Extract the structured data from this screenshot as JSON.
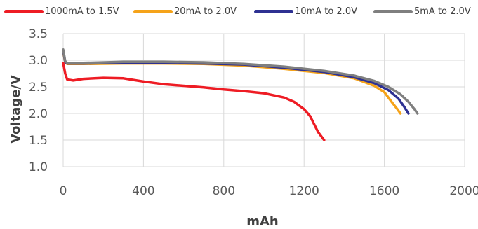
{
  "chart_data": {
    "type": "line",
    "xlabel": "mAh",
    "ylabel": "Voltage/V",
    "xlim": [
      0,
      2000
    ],
    "ylim": [
      1.0,
      3.5
    ],
    "x_ticks": [
      "0",
      "400",
      "800",
      "1200",
      "1600",
      "2000"
    ],
    "y_ticks": [
      "1.0",
      "1.5",
      "2.0",
      "2.5",
      "3.0",
      "3.5"
    ],
    "grid": "horizontal and vertical",
    "legend": "top",
    "series": [
      {
        "name": "1000mA to 1.5V",
        "color": "#ee1c24",
        "points": [
          [
            0,
            2.95
          ],
          [
            10,
            2.75
          ],
          [
            20,
            2.64
          ],
          [
            50,
            2.62
          ],
          [
            100,
            2.65
          ],
          [
            200,
            2.67
          ],
          [
            300,
            2.66
          ],
          [
            350,
            2.63
          ],
          [
            400,
            2.6
          ],
          [
            500,
            2.55
          ],
          [
            600,
            2.52
          ],
          [
            700,
            2.49
          ],
          [
            800,
            2.45
          ],
          [
            900,
            2.42
          ],
          [
            1000,
            2.38
          ],
          [
            1100,
            2.3
          ],
          [
            1150,
            2.22
          ],
          [
            1200,
            2.08
          ],
          [
            1230,
            1.95
          ],
          [
            1250,
            1.8
          ],
          [
            1270,
            1.65
          ],
          [
            1300,
            1.5
          ]
        ]
      },
      {
        "name": "20mA to 2.0V",
        "color": "#f5a31a",
        "points": [
          [
            0,
            3.15
          ],
          [
            10,
            2.97
          ],
          [
            20,
            2.93
          ],
          [
            100,
            2.93
          ],
          [
            300,
            2.94
          ],
          [
            500,
            2.94
          ],
          [
            700,
            2.93
          ],
          [
            900,
            2.9
          ],
          [
            1100,
            2.84
          ],
          [
            1300,
            2.76
          ],
          [
            1450,
            2.66
          ],
          [
            1550,
            2.52
          ],
          [
            1600,
            2.4
          ],
          [
            1640,
            2.2
          ],
          [
            1665,
            2.08
          ],
          [
            1680,
            2.0
          ]
        ]
      },
      {
        "name": "10mA to 2.0V",
        "color": "#2e3192",
        "points": [
          [
            0,
            3.18
          ],
          [
            10,
            2.97
          ],
          [
            20,
            2.94
          ],
          [
            100,
            2.94
          ],
          [
            300,
            2.95
          ],
          [
            500,
            2.95
          ],
          [
            700,
            2.94
          ],
          [
            900,
            2.92
          ],
          [
            1100,
            2.86
          ],
          [
            1300,
            2.78
          ],
          [
            1450,
            2.68
          ],
          [
            1550,
            2.57
          ],
          [
            1620,
            2.44
          ],
          [
            1670,
            2.28
          ],
          [
            1700,
            2.12
          ],
          [
            1720,
            2.0
          ]
        ]
      },
      {
        "name": "5mA to 2.0V",
        "color": "#7f7f7f",
        "points": [
          [
            0,
            3.2
          ],
          [
            10,
            2.98
          ],
          [
            20,
            2.95
          ],
          [
            100,
            2.95
          ],
          [
            300,
            2.97
          ],
          [
            500,
            2.97
          ],
          [
            700,
            2.96
          ],
          [
            900,
            2.93
          ],
          [
            1100,
            2.88
          ],
          [
            1300,
            2.8
          ],
          [
            1450,
            2.71
          ],
          [
            1550,
            2.61
          ],
          [
            1620,
            2.5
          ],
          [
            1680,
            2.36
          ],
          [
            1720,
            2.22
          ],
          [
            1750,
            2.08
          ],
          [
            1765,
            2.0
          ]
        ]
      }
    ]
  }
}
